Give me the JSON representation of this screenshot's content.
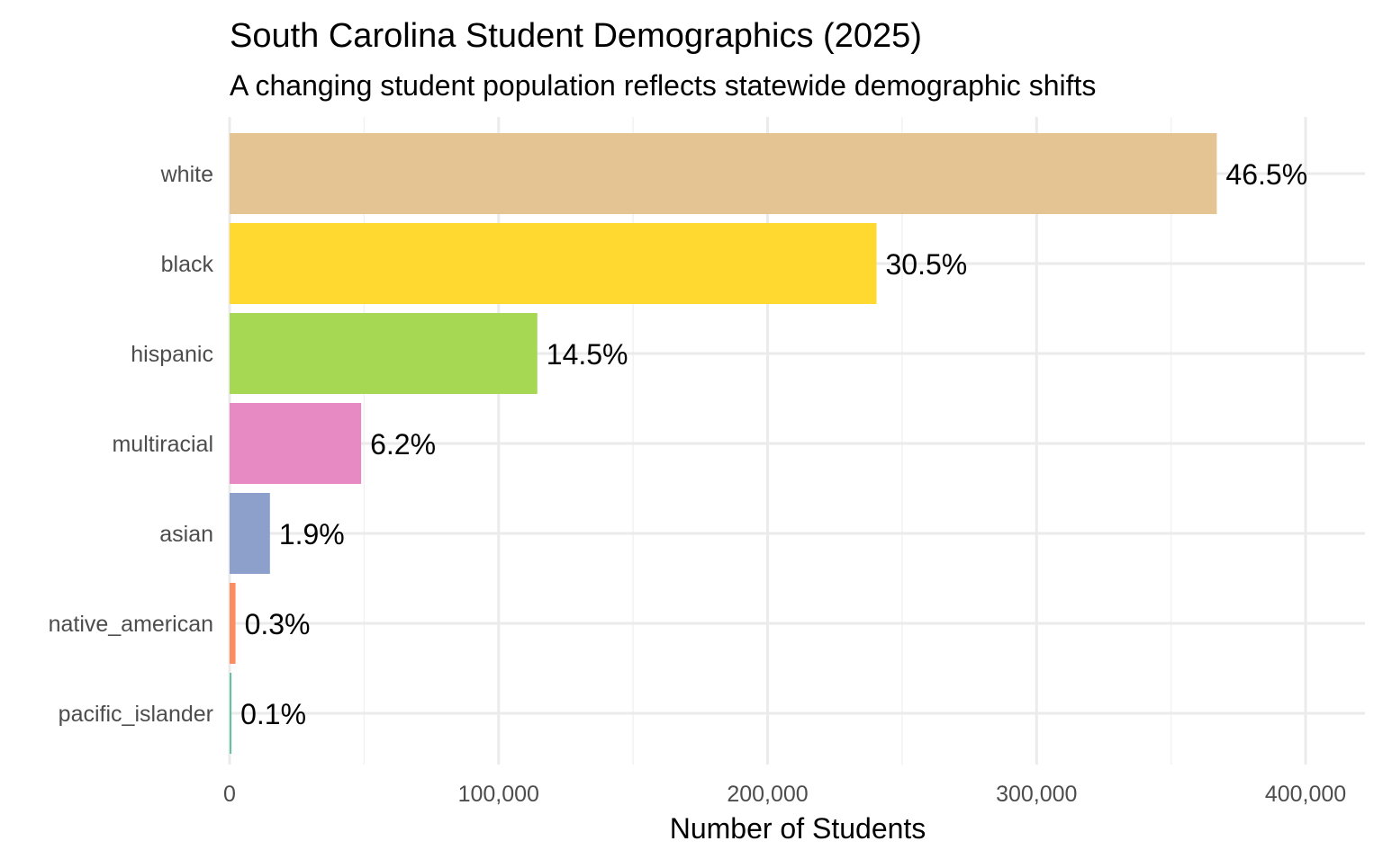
{
  "chart_data": {
    "type": "bar",
    "orientation": "horizontal",
    "title": "South Carolina Student Demographics (2025)",
    "subtitle": "A changing student population reflects statewide demographic shifts",
    "xlabel": "Number of Students",
    "ylabel": "",
    "xlim": [
      0,
      420000
    ],
    "xticks": [
      0,
      100000,
      200000,
      300000,
      400000
    ],
    "xtick_labels": [
      "0",
      "100,000",
      "200,000",
      "300,000",
      "400,000"
    ],
    "grid": true,
    "legend": "none",
    "categories": [
      "white",
      "black",
      "hispanic",
      "multiracial",
      "asian",
      "native_american",
      "pacific_islander"
    ],
    "values": [
      367000,
      240500,
      114400,
      48900,
      15000,
      2200,
      700
    ],
    "data_labels": [
      "46.5%",
      "30.5%",
      "14.5%",
      "6.2%",
      "1.9%",
      "0.3%",
      "0.1%"
    ],
    "colors": [
      "#E5C494",
      "#FFD92F",
      "#A6D854",
      "#E78AC3",
      "#8DA0CB",
      "#FC8D62",
      "#66C2A5"
    ]
  }
}
